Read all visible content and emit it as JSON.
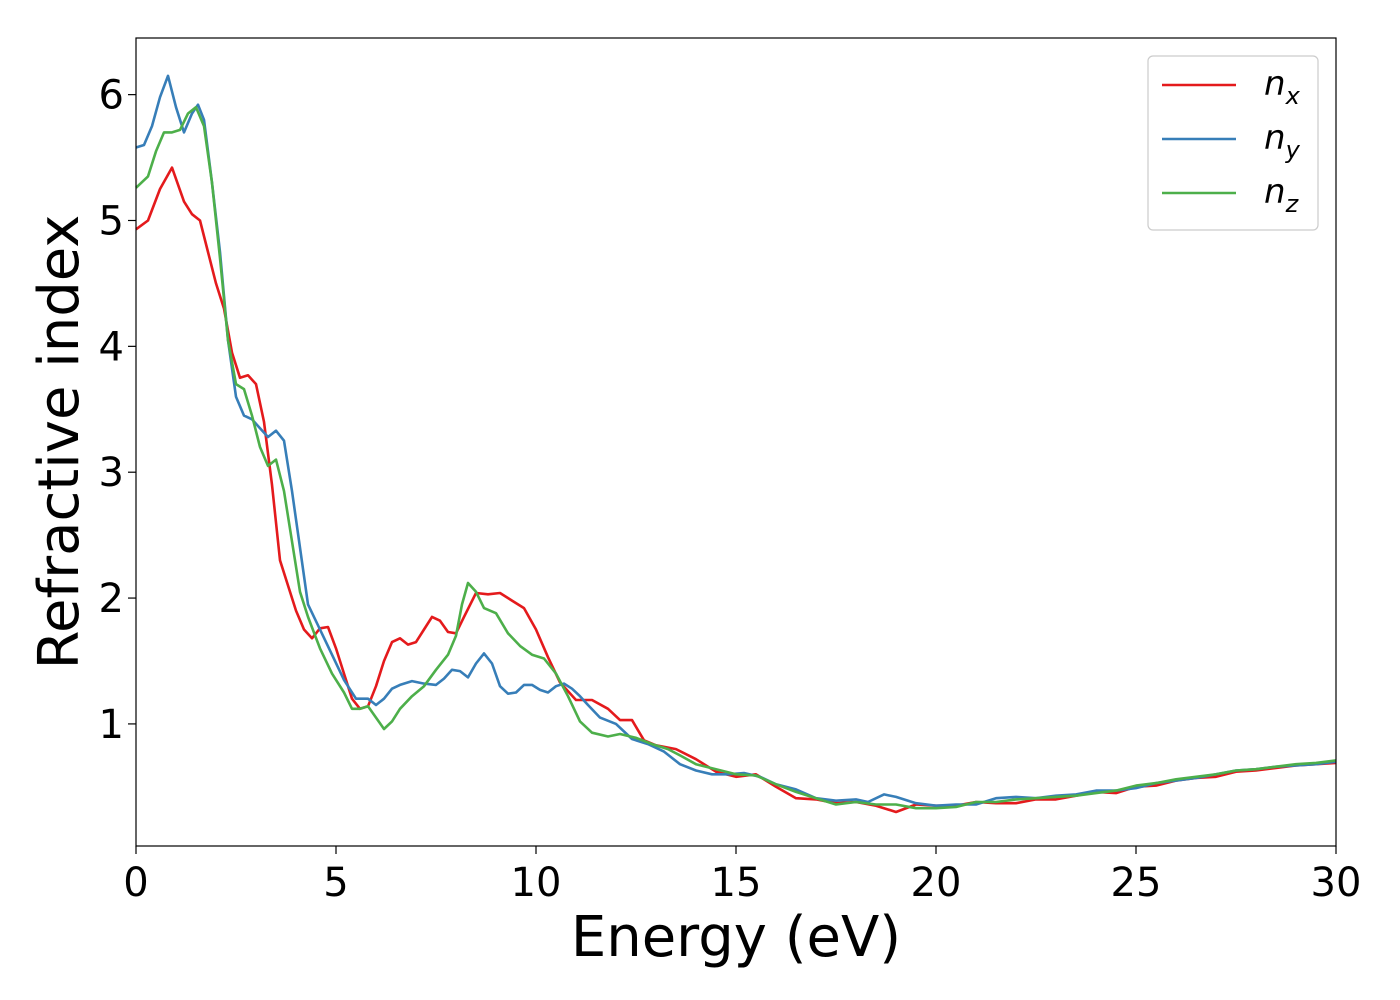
{
  "chart_data": {
    "type": "line",
    "xlabel": "Energy (eV)",
    "ylabel": "Refractive index",
    "xlim": [
      0,
      30
    ],
    "ylim": [
      0.03,
      6.45
    ],
    "xticks": [
      0,
      5,
      10,
      15,
      20,
      25,
      30
    ],
    "xtick_labels": [
      "0",
      "5",
      "10",
      "15",
      "20",
      "25",
      "30"
    ],
    "yticks": [
      1,
      2,
      3,
      4,
      5,
      6
    ],
    "ytick_labels": [
      "1",
      "2",
      "3",
      "4",
      "5",
      "6"
    ],
    "grid": false,
    "legend_position": "top-right",
    "series": [
      {
        "name": "n",
        "subscript": "x",
        "color": "#e41a1c",
        "points": [
          [
            0,
            4.93
          ],
          [
            0.3,
            5.0
          ],
          [
            0.6,
            5.25
          ],
          [
            0.9,
            5.42
          ],
          [
            1.2,
            5.15
          ],
          [
            1.4,
            5.05
          ],
          [
            1.6,
            5.0
          ],
          [
            1.8,
            4.75
          ],
          [
            2.0,
            4.5
          ],
          [
            2.2,
            4.3
          ],
          [
            2.4,
            3.95
          ],
          [
            2.6,
            3.75
          ],
          [
            2.8,
            3.77
          ],
          [
            3.0,
            3.7
          ],
          [
            3.2,
            3.4
          ],
          [
            3.4,
            2.9
          ],
          [
            3.6,
            2.3
          ],
          [
            3.8,
            2.1
          ],
          [
            4.0,
            1.9
          ],
          [
            4.2,
            1.75
          ],
          [
            4.4,
            1.68
          ],
          [
            4.6,
            1.76
          ],
          [
            4.8,
            1.77
          ],
          [
            5.0,
            1.6
          ],
          [
            5.2,
            1.4
          ],
          [
            5.4,
            1.2
          ],
          [
            5.6,
            1.12
          ],
          [
            5.8,
            1.14
          ],
          [
            6.0,
            1.3
          ],
          [
            6.2,
            1.5
          ],
          [
            6.4,
            1.65
          ],
          [
            6.6,
            1.68
          ],
          [
            6.8,
            1.63
          ],
          [
            7.0,
            1.65
          ],
          [
            7.2,
            1.75
          ],
          [
            7.4,
            1.85
          ],
          [
            7.6,
            1.82
          ],
          [
            7.8,
            1.73
          ],
          [
            8.0,
            1.72
          ],
          [
            8.2,
            1.85
          ],
          [
            8.5,
            2.04
          ],
          [
            8.8,
            2.03
          ],
          [
            9.1,
            2.04
          ],
          [
            9.4,
            1.98
          ],
          [
            9.7,
            1.92
          ],
          [
            10.0,
            1.75
          ],
          [
            10.3,
            1.53
          ],
          [
            10.6,
            1.33
          ],
          [
            11.0,
            1.19
          ],
          [
            11.4,
            1.19
          ],
          [
            11.8,
            1.12
          ],
          [
            12.1,
            1.03
          ],
          [
            12.4,
            1.03
          ],
          [
            12.7,
            0.87
          ],
          [
            13.0,
            0.83
          ],
          [
            13.5,
            0.8
          ],
          [
            14.0,
            0.72
          ],
          [
            14.5,
            0.62
          ],
          [
            15.0,
            0.58
          ],
          [
            15.5,
            0.6
          ],
          [
            16.0,
            0.5
          ],
          [
            16.5,
            0.41
          ],
          [
            17.0,
            0.4
          ],
          [
            17.5,
            0.37
          ],
          [
            18.0,
            0.38
          ],
          [
            18.5,
            0.35
          ],
          [
            19.0,
            0.3
          ],
          [
            19.5,
            0.36
          ],
          [
            20.0,
            0.35
          ],
          [
            20.5,
            0.35
          ],
          [
            21.0,
            0.38
          ],
          [
            21.5,
            0.37
          ],
          [
            22.0,
            0.37
          ],
          [
            22.5,
            0.4
          ],
          [
            23.0,
            0.4
          ],
          [
            23.5,
            0.43
          ],
          [
            24.0,
            0.46
          ],
          [
            24.5,
            0.45
          ],
          [
            25.0,
            0.5
          ],
          [
            25.5,
            0.51
          ],
          [
            26.0,
            0.55
          ],
          [
            26.5,
            0.57
          ],
          [
            27.0,
            0.58
          ],
          [
            27.5,
            0.62
          ],
          [
            28.0,
            0.63
          ],
          [
            28.5,
            0.65
          ],
          [
            29.0,
            0.67
          ],
          [
            29.5,
            0.68
          ],
          [
            30.0,
            0.69
          ]
        ]
      },
      {
        "name": "n",
        "subscript": "y",
        "color": "#377eb8",
        "points": [
          [
            0,
            5.58
          ],
          [
            0.2,
            5.6
          ],
          [
            0.4,
            5.75
          ],
          [
            0.6,
            5.98
          ],
          [
            0.8,
            6.15
          ],
          [
            1.0,
            5.9
          ],
          [
            1.2,
            5.7
          ],
          [
            1.4,
            5.85
          ],
          [
            1.55,
            5.92
          ],
          [
            1.7,
            5.8
          ],
          [
            1.9,
            5.3
          ],
          [
            2.1,
            4.75
          ],
          [
            2.3,
            4.05
          ],
          [
            2.5,
            3.6
          ],
          [
            2.7,
            3.45
          ],
          [
            2.9,
            3.42
          ],
          [
            3.1,
            3.35
          ],
          [
            3.3,
            3.28
          ],
          [
            3.5,
            3.33
          ],
          [
            3.7,
            3.25
          ],
          [
            3.9,
            2.85
          ],
          [
            4.1,
            2.4
          ],
          [
            4.3,
            1.95
          ],
          [
            4.6,
            1.75
          ],
          [
            4.9,
            1.55
          ],
          [
            5.2,
            1.35
          ],
          [
            5.5,
            1.2
          ],
          [
            5.8,
            1.2
          ],
          [
            6.0,
            1.15
          ],
          [
            6.2,
            1.2
          ],
          [
            6.4,
            1.28
          ],
          [
            6.6,
            1.31
          ],
          [
            6.9,
            1.34
          ],
          [
            7.2,
            1.32
          ],
          [
            7.5,
            1.31
          ],
          [
            7.7,
            1.36
          ],
          [
            7.9,
            1.43
          ],
          [
            8.1,
            1.42
          ],
          [
            8.3,
            1.37
          ],
          [
            8.5,
            1.48
          ],
          [
            8.7,
            1.56
          ],
          [
            8.9,
            1.48
          ],
          [
            9.1,
            1.3
          ],
          [
            9.3,
            1.24
          ],
          [
            9.5,
            1.25
          ],
          [
            9.7,
            1.31
          ],
          [
            9.9,
            1.31
          ],
          [
            10.1,
            1.27
          ],
          [
            10.3,
            1.25
          ],
          [
            10.5,
            1.3
          ],
          [
            10.7,
            1.32
          ],
          [
            10.9,
            1.28
          ],
          [
            11.1,
            1.22
          ],
          [
            11.3,
            1.15
          ],
          [
            11.6,
            1.05
          ],
          [
            12.0,
            1.0
          ],
          [
            12.4,
            0.88
          ],
          [
            12.8,
            0.84
          ],
          [
            13.2,
            0.78
          ],
          [
            13.6,
            0.68
          ],
          [
            14.0,
            0.63
          ],
          [
            14.4,
            0.6
          ],
          [
            14.8,
            0.6
          ],
          [
            15.2,
            0.61
          ],
          [
            15.6,
            0.58
          ],
          [
            16.0,
            0.52
          ],
          [
            16.5,
            0.48
          ],
          [
            17.0,
            0.41
          ],
          [
            17.5,
            0.39
          ],
          [
            18.0,
            0.4
          ],
          [
            18.3,
            0.38
          ],
          [
            18.7,
            0.44
          ],
          [
            19.0,
            0.42
          ],
          [
            19.5,
            0.37
          ],
          [
            20.0,
            0.35
          ],
          [
            20.5,
            0.36
          ],
          [
            21.0,
            0.36
          ],
          [
            21.5,
            0.41
          ],
          [
            22.0,
            0.42
          ],
          [
            22.5,
            0.41
          ],
          [
            23.0,
            0.43
          ],
          [
            23.5,
            0.44
          ],
          [
            24.0,
            0.47
          ],
          [
            24.5,
            0.47
          ],
          [
            25.0,
            0.49
          ],
          [
            25.5,
            0.53
          ],
          [
            26.0,
            0.55
          ],
          [
            26.5,
            0.57
          ],
          [
            27.0,
            0.6
          ],
          [
            27.5,
            0.63
          ],
          [
            28.0,
            0.64
          ],
          [
            28.5,
            0.66
          ],
          [
            29.0,
            0.67
          ],
          [
            29.5,
            0.68
          ],
          [
            30.0,
            0.7
          ]
        ]
      },
      {
        "name": "n",
        "subscript": "z",
        "color": "#4daf4a",
        "points": [
          [
            0,
            5.26
          ],
          [
            0.3,
            5.35
          ],
          [
            0.5,
            5.55
          ],
          [
            0.7,
            5.7
          ],
          [
            0.9,
            5.7
          ],
          [
            1.1,
            5.72
          ],
          [
            1.3,
            5.85
          ],
          [
            1.5,
            5.9
          ],
          [
            1.7,
            5.75
          ],
          [
            1.9,
            5.3
          ],
          [
            2.1,
            4.7
          ],
          [
            2.3,
            4.05
          ],
          [
            2.5,
            3.7
          ],
          [
            2.7,
            3.66
          ],
          [
            2.9,
            3.45
          ],
          [
            3.1,
            3.2
          ],
          [
            3.3,
            3.05
          ],
          [
            3.5,
            3.1
          ],
          [
            3.7,
            2.85
          ],
          [
            3.9,
            2.45
          ],
          [
            4.1,
            2.05
          ],
          [
            4.3,
            1.85
          ],
          [
            4.6,
            1.6
          ],
          [
            4.9,
            1.4
          ],
          [
            5.2,
            1.25
          ],
          [
            5.4,
            1.12
          ],
          [
            5.6,
            1.12
          ],
          [
            5.8,
            1.14
          ],
          [
            6.0,
            1.05
          ],
          [
            6.2,
            0.96
          ],
          [
            6.4,
            1.02
          ],
          [
            6.6,
            1.12
          ],
          [
            6.9,
            1.22
          ],
          [
            7.2,
            1.3
          ],
          [
            7.5,
            1.43
          ],
          [
            7.8,
            1.55
          ],
          [
            8.0,
            1.7
          ],
          [
            8.15,
            1.95
          ],
          [
            8.3,
            2.12
          ],
          [
            8.5,
            2.05
          ],
          [
            8.7,
            1.92
          ],
          [
            9.0,
            1.88
          ],
          [
            9.3,
            1.72
          ],
          [
            9.6,
            1.62
          ],
          [
            9.9,
            1.55
          ],
          [
            10.2,
            1.52
          ],
          [
            10.5,
            1.4
          ],
          [
            10.8,
            1.22
          ],
          [
            11.1,
            1.02
          ],
          [
            11.4,
            0.93
          ],
          [
            11.8,
            0.9
          ],
          [
            12.1,
            0.92
          ],
          [
            12.5,
            0.89
          ],
          [
            12.9,
            0.84
          ],
          [
            13.3,
            0.8
          ],
          [
            13.6,
            0.75
          ],
          [
            14.0,
            0.68
          ],
          [
            14.5,
            0.64
          ],
          [
            15.0,
            0.6
          ],
          [
            15.5,
            0.59
          ],
          [
            16.0,
            0.52
          ],
          [
            16.5,
            0.46
          ],
          [
            17.0,
            0.41
          ],
          [
            17.5,
            0.36
          ],
          [
            18.0,
            0.38
          ],
          [
            18.5,
            0.36
          ],
          [
            19.0,
            0.36
          ],
          [
            19.5,
            0.33
          ],
          [
            20.0,
            0.33
          ],
          [
            20.5,
            0.34
          ],
          [
            21.0,
            0.38
          ],
          [
            21.5,
            0.38
          ],
          [
            22.0,
            0.4
          ],
          [
            22.5,
            0.41
          ],
          [
            23.0,
            0.42
          ],
          [
            23.5,
            0.43
          ],
          [
            24.0,
            0.45
          ],
          [
            24.5,
            0.47
          ],
          [
            25.0,
            0.51
          ],
          [
            25.5,
            0.53
          ],
          [
            26.0,
            0.56
          ],
          [
            26.5,
            0.58
          ],
          [
            27.0,
            0.6
          ],
          [
            27.5,
            0.63
          ],
          [
            28.0,
            0.64
          ],
          [
            28.5,
            0.66
          ],
          [
            29.0,
            0.68
          ],
          [
            29.5,
            0.69
          ],
          [
            30.0,
            0.71
          ]
        ]
      }
    ]
  }
}
